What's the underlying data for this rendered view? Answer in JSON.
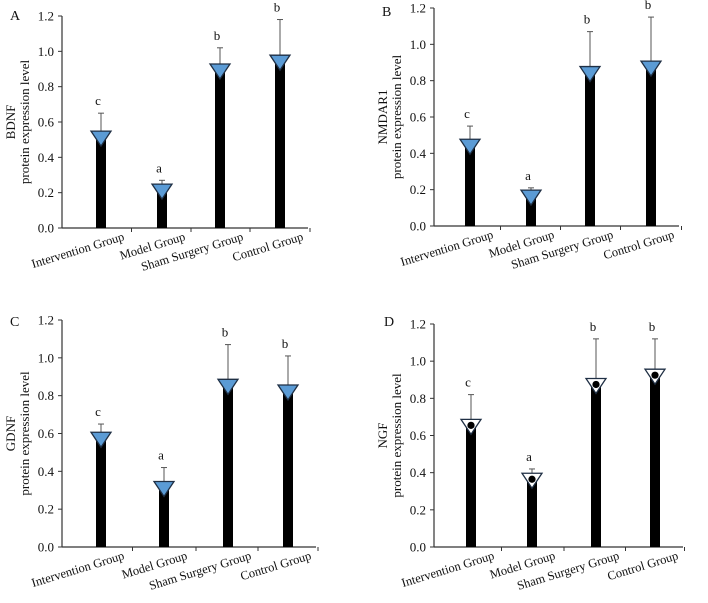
{
  "figure": {
    "description_colors": {
      "bar": "#000000",
      "triangle_fill": "#5b9bd5",
      "triangle_stroke": "#1f2f44",
      "open_triangle_fill": "#ffffff",
      "error_bar": "#555555",
      "axis": "#333333"
    }
  },
  "chart_data": [
    {
      "panel": "A",
      "type": "bar",
      "title": "",
      "ylabel": "BDNF",
      "ylabel2": "protein expression level",
      "categories": [
        "Intervention Group",
        "Model Group",
        "Sham Surgery Group",
        "Control Group"
      ],
      "values": [
        0.52,
        0.22,
        0.9,
        0.95
      ],
      "error_upper": [
        0.65,
        0.27,
        1.02,
        1.18
      ],
      "significance": [
        "c",
        "a",
        "b",
        "b"
      ],
      "marker": "filled-triangle",
      "ylim": [
        0,
        1.2
      ],
      "yticks": [
        "0.0",
        "0.2",
        "0.4",
        "0.6",
        "0.8",
        "1.0",
        "1.2"
      ]
    },
    {
      "panel": "B",
      "type": "bar",
      "title": "",
      "ylabel": "NMDAR1",
      "ylabel2": "protein expression level",
      "categories": [
        "Intervention Group",
        "Model Group",
        "Sham Surgery Group",
        "Control Group"
      ],
      "values": [
        0.45,
        0.17,
        0.85,
        0.88
      ],
      "error_upper": [
        0.55,
        0.21,
        1.07,
        1.15
      ],
      "significance": [
        "c",
        "a",
        "b",
        "b"
      ],
      "marker": "filled-triangle",
      "ylim": [
        0,
        1.2
      ],
      "yticks": [
        "0.0",
        "0.2",
        "0.4",
        "0.6",
        "0.8",
        "1.0",
        "1.2"
      ]
    },
    {
      "panel": "C",
      "type": "bar",
      "title": "",
      "ylabel": "GDNF",
      "ylabel2": "protein expression level",
      "categories": [
        "Intervention Group",
        "Model Group",
        "Sham Surgery Group",
        "Control Group"
      ],
      "values": [
        0.58,
        0.32,
        0.86,
        0.83
      ],
      "error_upper": [
        0.65,
        0.42,
        1.07,
        1.01
      ],
      "significance": [
        "c",
        "a",
        "b",
        "b"
      ],
      "marker": "filled-triangle",
      "ylim": [
        0,
        1.2
      ],
      "yticks": [
        "0.0",
        "0.2",
        "0.4",
        "0.6",
        "0.8",
        "1.0",
        "1.2"
      ]
    },
    {
      "panel": "D",
      "type": "bar",
      "title": "",
      "ylabel": "NGF",
      "ylabel2": "protein expression level",
      "categories": [
        "Intervention Group",
        "Model Group",
        "Sham Surgery Group",
        "Control Group"
      ],
      "values": [
        0.66,
        0.37,
        0.88,
        0.93
      ],
      "error_upper": [
        0.82,
        0.42,
        1.12,
        1.12
      ],
      "significance": [
        "c",
        "a",
        "b",
        "b"
      ],
      "marker": "open-triangle",
      "ylim": [
        0,
        1.2
      ],
      "yticks": [
        "0.0",
        "0.2",
        "0.4",
        "0.6",
        "0.8",
        "1.0",
        "1.2"
      ]
    }
  ]
}
